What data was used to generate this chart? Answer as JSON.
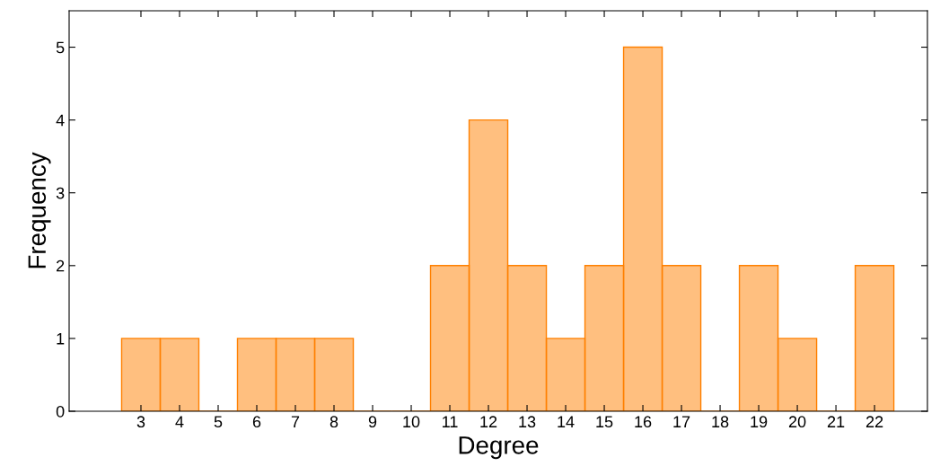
{
  "chart_data": {
    "type": "histogram",
    "xlabel": "Degree",
    "ylabel": "Frequency",
    "bins": [
      2.5,
      3.5,
      4.5,
      5.5,
      6.5,
      7.5,
      8.5,
      9.5,
      10.5,
      11.5,
      12.5,
      13.5,
      14.5,
      15.5,
      16.5,
      17.5,
      18.5,
      19.5,
      20.5,
      21.5,
      22.5
    ],
    "values": [
      1,
      1,
      0,
      1,
      1,
      1,
      0,
      0,
      2,
      4,
      2,
      1,
      2,
      5,
      2,
      0,
      2,
      1,
      0,
      2
    ],
    "color": "#ff8000",
    "xlim": [
      1.14,
      23.37
    ],
    "xticks": [
      3,
      4,
      5,
      6,
      7,
      8,
      9,
      10,
      11,
      12,
      13,
      14,
      15,
      16,
      17,
      18,
      19,
      20,
      21,
      22
    ],
    "ylim": [
      0,
      5.5
    ],
    "yticks": [
      0,
      1,
      2,
      3,
      4,
      5
    ],
    "grid": false,
    "legend": false
  }
}
